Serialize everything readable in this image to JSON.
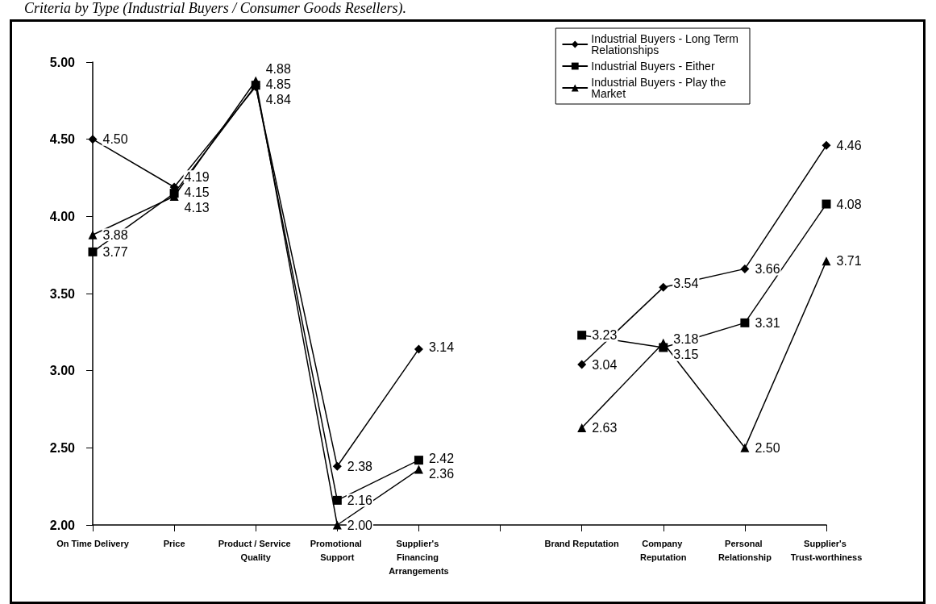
{
  "chart_data": {
    "type": "line",
    "title": "Criteria by Type (Industrial Buyers / Consumer Goods Resellers).",
    "categories": [
      "On Time Delivery",
      "Price",
      "Product / Service Quality",
      "Promotional Support",
      "Supplier's Financing Arrangements",
      null,
      "Brand Reputation",
      "Company Reputation",
      "Personal Relationship",
      "Supplier's Trust-worthiness"
    ],
    "series": [
      {
        "name": "Industrial Buyers - Long Term Relationships",
        "color": "#000000",
        "marker": "diamond",
        "values": [
          4.5,
          4.19,
          4.84,
          2.38,
          3.14,
          null,
          3.04,
          3.54,
          3.66,
          4.46
        ],
        "value_labels": [
          "4.50",
          "4.19",
          "4.84",
          "2.38",
          "3.14",
          null,
          "3.04",
          "3.54",
          "3.66",
          "4.46"
        ]
      },
      {
        "name": "Industrial Buyers - Either",
        "color": "#000000",
        "marker": "square",
        "values": [
          3.77,
          4.15,
          4.85,
          2.16,
          2.42,
          null,
          3.23,
          3.15,
          3.31,
          4.08
        ],
        "value_labels": [
          "3.77",
          "4.15",
          "4.85",
          "2.16",
          "2.42",
          null,
          "3.23",
          "3.15",
          "3.31",
          "4.08"
        ]
      },
      {
        "name": "Industrial Buyers - Play the Market",
        "color": "#000000",
        "marker": "triangle",
        "values": [
          3.88,
          4.13,
          4.88,
          2.0,
          2.36,
          null,
          2.63,
          3.18,
          2.5,
          3.71
        ],
        "value_labels": [
          "3.88",
          "4.13",
          "4.88",
          "2.00",
          "2.36",
          null,
          "2.63",
          "3.18",
          "2.50",
          "3.71"
        ]
      }
    ],
    "ylim": [
      2,
      5
    ],
    "yticks": [
      {
        "value": 2,
        "label": "2.00"
      },
      {
        "value": 2.5,
        "label": "2.50"
      },
      {
        "value": 3,
        "label": "3.00"
      },
      {
        "value": 3.5,
        "label": "3.50"
      },
      {
        "value": 4,
        "label": "4.00"
      },
      {
        "value": 4.5,
        "label": "4.50"
      },
      {
        "value": 5,
        "label": "5.00"
      }
    ],
    "grid": false,
    "legend": "top right",
    "line_style": "solid"
  }
}
